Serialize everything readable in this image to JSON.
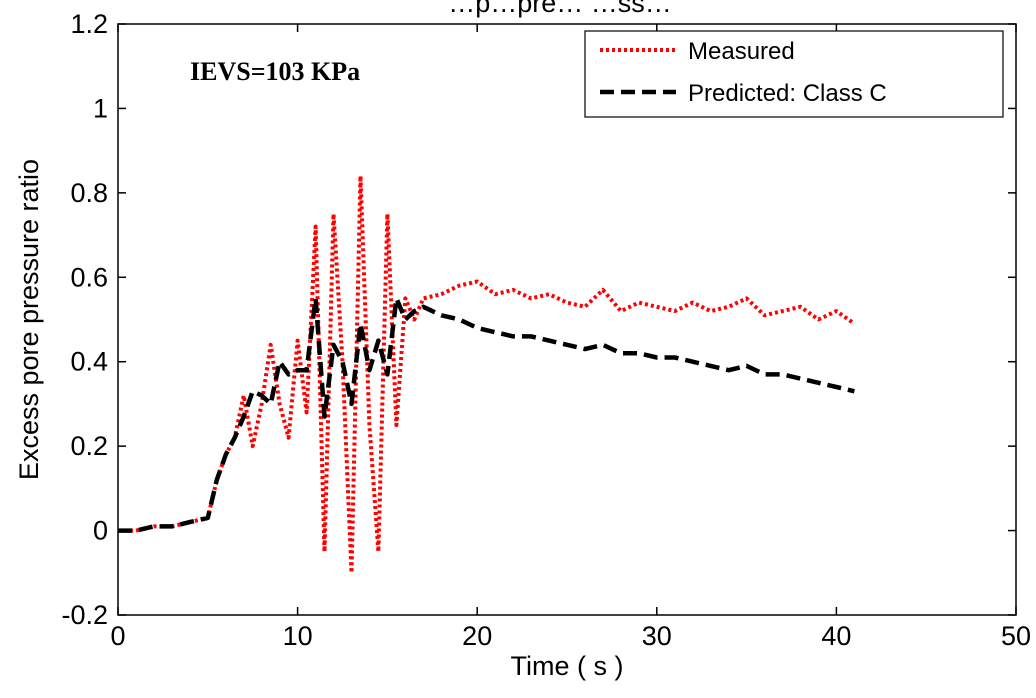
{
  "chart_data": {
    "type": "line",
    "title": "…p…pre… …ss…",
    "xlabel": "Time ( s )",
    "ylabel": "Excess pore pressure ratio",
    "xlim": [
      0,
      50
    ],
    "ylim": [
      -0.2,
      1.2
    ],
    "xticks": [
      0,
      10,
      20,
      30,
      40,
      50
    ],
    "yticks": [
      -0.2,
      0,
      0.2,
      0.4,
      0.6,
      0.8,
      1,
      1.2
    ],
    "xtick_labels": [
      "0",
      "10",
      "20",
      "30",
      "40",
      "50"
    ],
    "ytick_labels": [
      "-0.2",
      "0",
      "0.2",
      "0.4",
      "0.6",
      "0.8",
      "1",
      "1.2"
    ],
    "annotation": "IEVS=103 KPa",
    "grid": false,
    "legend_position": "top-right",
    "series": [
      {
        "name": "Measured",
        "color": "#ff0000",
        "style": "dotted",
        "x": [
          0,
          1,
          2,
          3,
          4,
          5,
          5.5,
          6,
          6.5,
          7,
          7.5,
          8,
          8.5,
          9,
          9.5,
          10,
          10.5,
          11,
          11.5,
          12,
          12.5,
          13,
          13.5,
          14,
          14.5,
          15,
          15.5,
          16,
          16.5,
          17,
          18,
          19,
          20,
          21,
          22,
          23,
          24,
          25,
          26,
          27,
          28,
          29,
          30,
          31,
          32,
          33,
          34,
          35,
          36,
          37,
          38,
          39,
          40,
          41
        ],
        "y": [
          0.0,
          0.0,
          0.01,
          0.01,
          0.02,
          0.03,
          0.12,
          0.18,
          0.22,
          0.32,
          0.2,
          0.3,
          0.44,
          0.3,
          0.22,
          0.45,
          0.28,
          0.72,
          -0.05,
          0.75,
          0.4,
          -0.1,
          0.84,
          0.25,
          -0.05,
          0.75,
          0.25,
          0.55,
          0.5,
          0.55,
          0.56,
          0.58,
          0.59,
          0.56,
          0.57,
          0.55,
          0.56,
          0.54,
          0.53,
          0.57,
          0.52,
          0.54,
          0.53,
          0.52,
          0.54,
          0.52,
          0.53,
          0.55,
          0.51,
          0.52,
          0.53,
          0.5,
          0.52,
          0.49
        ]
      },
      {
        "name": "Predicted: Class C",
        "color": "#000000",
        "style": "dashed",
        "x": [
          0,
          1,
          2,
          3,
          4,
          5,
          5.5,
          6,
          6.5,
          7,
          7.5,
          8,
          8.5,
          9,
          9.5,
          10,
          10.5,
          11,
          11.5,
          12,
          12.5,
          13,
          13.5,
          14,
          14.5,
          15,
          15.5,
          16,
          16.5,
          17,
          18,
          19,
          20,
          21,
          22,
          23,
          24,
          25,
          26,
          27,
          28,
          29,
          30,
          31,
          32,
          33,
          34,
          35,
          36,
          37,
          38,
          39,
          40,
          41
        ],
        "y": [
          0.0,
          0.0,
          0.01,
          0.01,
          0.02,
          0.03,
          0.12,
          0.18,
          0.22,
          0.27,
          0.33,
          0.32,
          0.3,
          0.4,
          0.37,
          0.38,
          0.38,
          0.55,
          0.27,
          0.44,
          0.4,
          0.3,
          0.49,
          0.38,
          0.45,
          0.37,
          0.55,
          0.5,
          0.52,
          0.53,
          0.51,
          0.5,
          0.48,
          0.47,
          0.46,
          0.46,
          0.45,
          0.44,
          0.43,
          0.44,
          0.42,
          0.42,
          0.41,
          0.41,
          0.4,
          0.39,
          0.38,
          0.39,
          0.37,
          0.37,
          0.36,
          0.35,
          0.34,
          0.33
        ]
      }
    ]
  }
}
